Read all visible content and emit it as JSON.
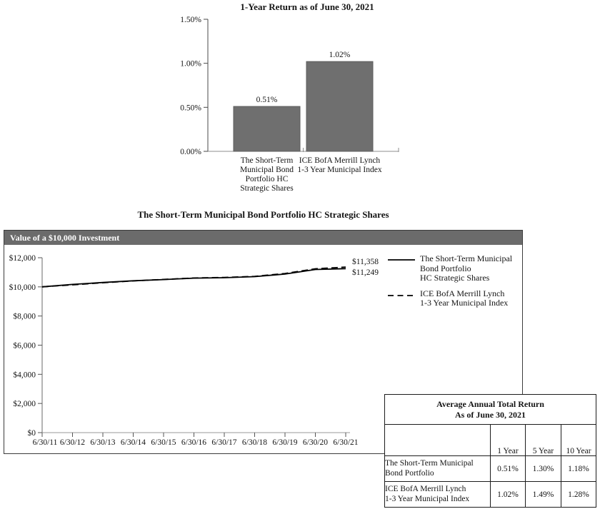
{
  "page": {
    "background": "#ffffff",
    "accent_gray": "#6b6b6b",
    "bar_gray": "#6f6f6f"
  },
  "chart_data": [
    {
      "type": "bar",
      "title": "1-Year Return as of June 30, 2021",
      "categories": [
        "The Short-Term Municipal Bond Portfolio HC Strategic Shares",
        "ICE BofA Merrill Lynch 1-3 Year Municipal Index"
      ],
      "category_label_lines": [
        [
          "The Short-Term",
          "Municipal Bond",
          "Portfolio HC",
          "Strategic Shares"
        ],
        [
          "ICE BofA Merrill Lynch",
          "1-3 Year Municipal Index"
        ]
      ],
      "values": [
        0.51,
        1.02
      ],
      "value_labels": [
        "0.51%",
        "1.02%"
      ],
      "ylim": [
        0,
        1.5
      ],
      "y_ticks": [
        {
          "value": 0.0,
          "label": "0.00%"
        },
        {
          "value": 0.5,
          "label": "0.50%"
        },
        {
          "value": 1.0,
          "label": "1.00%"
        },
        {
          "value": 1.5,
          "label": "1.50%"
        }
      ],
      "bar_color": "#6f6f6f",
      "grid": false
    },
    {
      "type": "line",
      "title": "The Short-Term Municipal Bond Portfolio HC Strategic Shares",
      "panel_header": "Value of a $10,000 Investment",
      "x_labels": [
        "6/30/11",
        "6/30/12",
        "6/30/13",
        "6/30/14",
        "6/30/15",
        "6/30/16",
        "6/30/17",
        "6/30/18",
        "6/30/19",
        "6/30/20",
        "6/30/21"
      ],
      "ylim": [
        0,
        12000
      ],
      "y_ticks": [
        {
          "value": 0,
          "label": "$0"
        },
        {
          "value": 2000,
          "label": "$2,000"
        },
        {
          "value": 4000,
          "label": "$4,000"
        },
        {
          "value": 6000,
          "label": "$6,000"
        },
        {
          "value": 8000,
          "label": "$8,000"
        },
        {
          "value": 10000,
          "label": "$10,000"
        },
        {
          "value": 12000,
          "label": "$12,000"
        }
      ],
      "series": [
        {
          "name": "The Short-Term Municipal Bond Portfolio HC Strategic Shares",
          "legend_lines": [
            "The Short-Term Municipal",
            "Bond Portfolio",
            "HC Strategic Shares"
          ],
          "style": "solid",
          "end_label": "$11,249",
          "values": [
            10000,
            10170,
            10300,
            10420,
            10500,
            10600,
            10630,
            10700,
            10880,
            11190,
            11249
          ]
        },
        {
          "name": "ICE BofA Merrill Lynch 1-3 Year Municipal Index",
          "legend_lines": [
            "ICE BofA Merrill Lynch",
            "1-3 Year Municipal Index"
          ],
          "style": "dashed",
          "end_label": "$11,358",
          "values": [
            10000,
            10140,
            10280,
            10410,
            10510,
            10610,
            10650,
            10720,
            10920,
            11240,
            11358
          ]
        }
      ],
      "end_labels_top_to_bottom": [
        "$11,358",
        "$11,249"
      ],
      "line_color": "#000000",
      "legend_position": "top-right-inside",
      "grid": false
    },
    {
      "type": "table",
      "title_lines": [
        "Average Annual Total Return",
        "As of June 30, 2021"
      ],
      "columns": [
        "",
        "1 Year",
        "5 Year",
        "10 Year"
      ],
      "rows": [
        {
          "name": "The Short-Term Municipal Bond Portfolio",
          "name_lines": [
            "The Short-Term Municipal",
            "Bond Portfolio"
          ],
          "values": [
            "0.51%",
            "1.30%",
            "1.18%"
          ]
        },
        {
          "name": "ICE BofA Merrill Lynch 1-3 Year Municipal Index",
          "name_lines": [
            "ICE BofA Merrill Lynch",
            "1-3 Year Municipal Index"
          ],
          "values": [
            "1.02%",
            "1.49%",
            "1.28%"
          ]
        }
      ]
    }
  ]
}
